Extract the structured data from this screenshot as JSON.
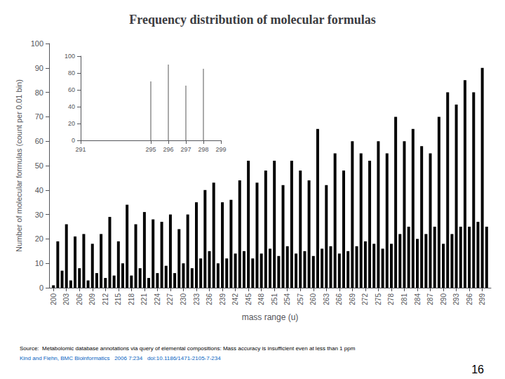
{
  "chart_data": [
    {
      "type": "bar",
      "title": "Frequency distribution of molecular formulas",
      "xlabel": "mass range (u)",
      "ylabel": "Number of molecular formulas (count per 0.01 bin)",
      "x": [
        200,
        201,
        202,
        203,
        204,
        205,
        206,
        207,
        208,
        209,
        210,
        211,
        212,
        213,
        214,
        215,
        216,
        217,
        218,
        219,
        220,
        221,
        222,
        223,
        224,
        225,
        226,
        227,
        228,
        229,
        230,
        231,
        232,
        233,
        234,
        235,
        236,
        237,
        238,
        239,
        240,
        241,
        242,
        243,
        244,
        245,
        246,
        247,
        248,
        249,
        250,
        251,
        252,
        253,
        254,
        255,
        256,
        257,
        258,
        259,
        260,
        261,
        262,
        263,
        264,
        265,
        266,
        267,
        268,
        269,
        270,
        271,
        272,
        273,
        274,
        275,
        276,
        277,
        278,
        279,
        280,
        281,
        282,
        283,
        284,
        285,
        286,
        287,
        288,
        289,
        290,
        291,
        292,
        293,
        294,
        295,
        296,
        297,
        298,
        299,
        300
      ],
      "values": [
        1,
        19,
        7,
        26,
        3,
        21,
        8,
        22,
        3,
        18,
        6,
        22,
        4,
        29,
        5,
        19,
        10,
        34,
        5,
        26,
        8,
        31,
        4,
        28,
        6,
        27,
        9,
        30,
        6,
        24,
        10,
        30,
        8,
        35,
        12,
        40,
        15,
        43,
        10,
        35,
        12,
        36,
        14,
        44,
        15,
        52,
        12,
        43,
        14,
        48,
        16,
        52,
        13,
        42,
        17,
        52,
        14,
        48,
        15,
        44,
        13,
        65,
        16,
        42,
        17,
        55,
        14,
        48,
        15,
        60,
        17,
        55,
        19,
        52,
        18,
        60,
        16,
        55,
        18,
        70,
        22,
        60,
        25,
        65,
        20,
        58,
        22,
        55,
        25,
        70,
        18,
        80,
        22,
        75,
        25,
        85,
        25,
        80,
        27,
        90,
        25
      ],
      "color": "#000000",
      "xlim": [
        199,
        301
      ],
      "ylim": [
        0,
        100
      ],
      "xticks": [
        200,
        203,
        206,
        209,
        212,
        215,
        218,
        221,
        224,
        227,
        230,
        233,
        236,
        239,
        242,
        245,
        248,
        251,
        254,
        257,
        260,
        263,
        266,
        269,
        272,
        275,
        278,
        281,
        284,
        287,
        290,
        293,
        296,
        299
      ],
      "yticks": [
        0,
        10,
        20,
        30,
        40,
        50,
        60,
        70,
        80,
        90,
        100
      ],
      "grid": false,
      "annotations": [
        "Source:  Metabolomic database annotations via query of elemental compositions: Mass accuracy is insufficient even at less than 1 ppm",
        "Kind and Fiehn, BMC Bioinformatics   2006 7:234   doi:10.1186/1471-2105-7-234",
        "16"
      ]
    },
    {
      "type": "bar",
      "x": [
        295,
        296,
        297,
        298
      ],
      "values": [
        70,
        90,
        65,
        85
      ],
      "color": "#aaaaaa",
      "xlim": [
        291,
        299
      ],
      "ylim": [
        0,
        100
      ],
      "xticks": [
        291,
        295,
        296,
        297,
        298,
        299
      ],
      "yticks": [
        0,
        20,
        40,
        60,
        80,
        100
      ],
      "grid": false
    }
  ]
}
